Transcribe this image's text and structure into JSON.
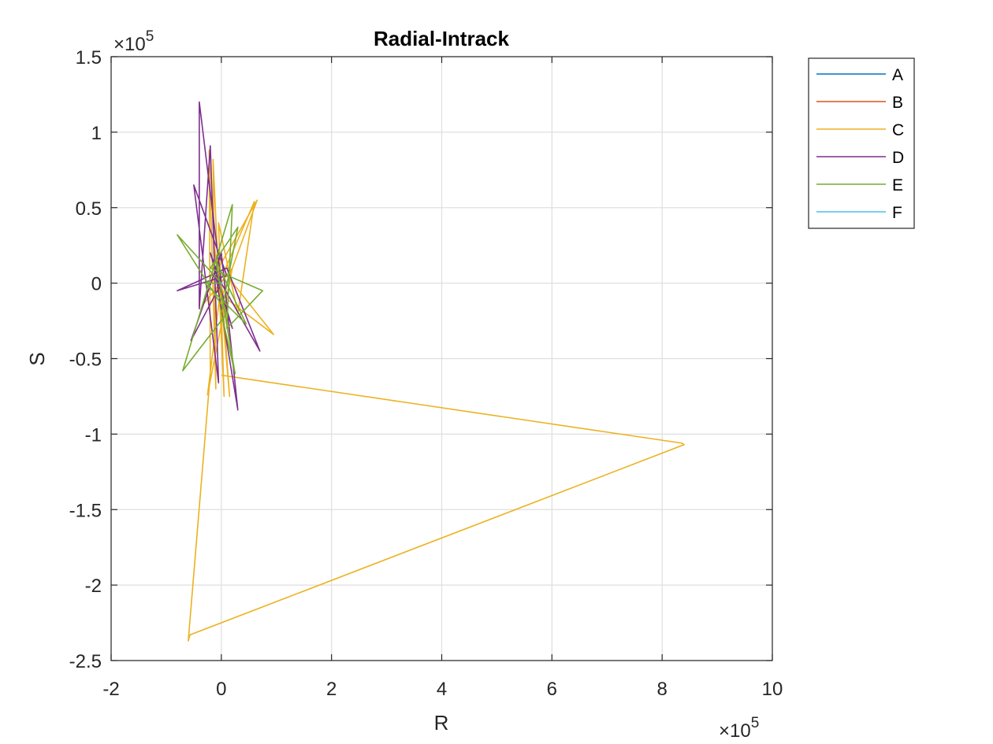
{
  "chart_data": {
    "type": "line",
    "title": "Radial-Intrack",
    "xlabel": "R",
    "ylabel": "S",
    "x_exponent_prefix": "×10",
    "x_exponent_power": "5",
    "y_exponent_prefix": "×10",
    "y_exponent_power": "5",
    "xlim": [
      -2,
      10
    ],
    "ylim": [
      -2.5,
      1.5
    ],
    "x_scale_factor": 100000,
    "y_scale_factor": 100000,
    "xticks": [
      -2,
      0,
      2,
      4,
      6,
      8,
      10
    ],
    "xtick_labels": [
      "-2",
      "0",
      "2",
      "4",
      "6",
      "8",
      "10"
    ],
    "yticks": [
      -2.5,
      -2,
      -1.5,
      -1,
      -0.5,
      0,
      0.5,
      1,
      1.5
    ],
    "ytick_labels": [
      "-2.5",
      "-2",
      "-1.5",
      "-1",
      "-0.5",
      "0",
      "0.5",
      "1",
      "1.5"
    ],
    "grid": true,
    "legend_position": "outside-top-right",
    "series": [
      {
        "name": "A",
        "color": "#0072BD",
        "points": [
          [
            0.0,
            0.0
          ],
          [
            0.01,
            0.01
          ],
          [
            -0.01,
            0.0
          ]
        ]
      },
      {
        "name": "B",
        "color": "#D95319",
        "points": [
          [
            0.0,
            0.0
          ],
          [
            0.01,
            -0.01
          ],
          [
            0.0,
            0.01
          ]
        ]
      },
      {
        "name": "C",
        "color": "#EDB120",
        "points": [
          [
            0.0,
            -0.61
          ],
          [
            8.36,
            -1.06
          ],
          [
            8.4,
            -1.07
          ],
          [
            -0.57,
            -2.33
          ],
          [
            -0.6,
            -2.37
          ],
          [
            -0.2,
            -0.6
          ],
          [
            -0.22,
            0.88
          ],
          [
            -0.1,
            -0.7
          ],
          [
            -0.15,
            0.82
          ],
          [
            0.05,
            -0.75
          ],
          [
            -0.05,
            0.4
          ],
          [
            0.3,
            -0.2
          ],
          [
            0.6,
            0.54
          ],
          [
            -0.1,
            -0.05
          ],
          [
            0.95,
            -0.34
          ],
          [
            0.1,
            0.05
          ],
          [
            -0.35,
            -0.15
          ],
          [
            0.2,
            0.1
          ],
          [
            -0.25,
            -0.74
          ],
          [
            0.0,
            0.0
          ],
          [
            0.15,
            -0.75
          ],
          [
            -0.05,
            0.1
          ],
          [
            0.65,
            0.55
          ],
          [
            0.0,
            -0.1
          ],
          [
            -0.15,
            0.3
          ],
          [
            0.2,
            -0.5
          ],
          [
            0.0,
            0.0
          ]
        ]
      },
      {
        "name": "D",
        "color": "#7E2F8E",
        "points": [
          [
            0.0,
            0.0
          ],
          [
            -0.4,
            1.2
          ],
          [
            -0.4,
            -0.17
          ],
          [
            -0.2,
            0.91
          ],
          [
            -0.05,
            -0.66
          ],
          [
            -0.5,
            0.65
          ],
          [
            0.1,
            0.05
          ],
          [
            -0.8,
            -0.05
          ],
          [
            0.1,
            0.1
          ],
          [
            0.7,
            -0.45
          ],
          [
            0.0,
            0.0
          ],
          [
            -0.55,
            -0.38
          ],
          [
            0.0,
            0.2
          ],
          [
            0.3,
            -0.84
          ],
          [
            -0.1,
            0.05
          ],
          [
            0.2,
            -0.3
          ],
          [
            -0.2,
            0.2
          ],
          [
            0.0,
            0.0
          ]
        ]
      },
      {
        "name": "E",
        "color": "#77AC30",
        "points": [
          [
            0.0,
            0.0
          ],
          [
            -0.8,
            0.32
          ],
          [
            0.1,
            -0.2
          ],
          [
            -0.7,
            -0.58
          ],
          [
            0.2,
            0.52
          ],
          [
            0.1,
            -0.3
          ],
          [
            0.75,
            -0.05
          ],
          [
            -0.2,
            0.1
          ],
          [
            0.3,
            0.37
          ],
          [
            0.0,
            -0.2
          ],
          [
            0.25,
            -0.6
          ],
          [
            -0.1,
            0.15
          ],
          [
            0.45,
            -0.27
          ],
          [
            -0.3,
            0.0
          ],
          [
            0.0,
            0.0
          ]
        ]
      },
      {
        "name": "F",
        "color": "#4DBEEE",
        "points": [
          [
            0.0,
            0.0
          ],
          [
            0.01,
            0.0
          ],
          [
            0.0,
            -0.01
          ]
        ]
      }
    ]
  }
}
